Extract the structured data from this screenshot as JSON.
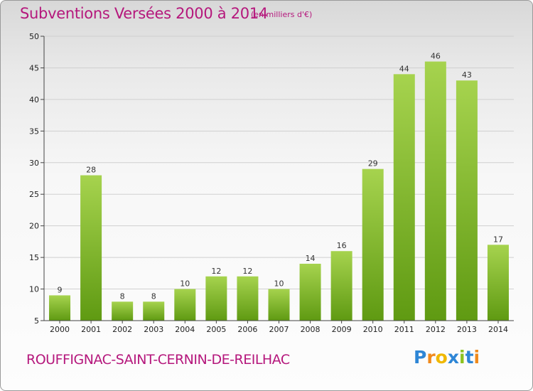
{
  "title": "Subventions Versées 2000 à 2014",
  "unit_note": "(en milliers d'€)",
  "commune": "ROUFFIGNAC-SAINT-CERNIN-DE-REILHAC",
  "logo": {
    "text": "Proxiti",
    "letters": [
      {
        "ch": "P",
        "color": "#2e86d6"
      },
      {
        "ch": "r",
        "color": "#f08a1c"
      },
      {
        "ch": "o",
        "color": "#f0b800"
      },
      {
        "ch": "x",
        "color": "#2e86d6"
      },
      {
        "ch": "i",
        "color": "#8cc21f"
      },
      {
        "ch": "t",
        "color": "#2e86d6"
      },
      {
        "ch": "i",
        "color": "#f08a1c"
      }
    ]
  },
  "colors": {
    "title": "#b5177c",
    "bar_light": "#a6d34e",
    "bar_dark": "#5f9a12",
    "axis": "#444444",
    "grid": "#d0d0d0"
  },
  "chart_data": {
    "type": "bar",
    "categories": [
      "2000",
      "2001",
      "2002",
      "2003",
      "2004",
      "2005",
      "2006",
      "2007",
      "2008",
      "2009",
      "2010",
      "2011",
      "2012",
      "2013",
      "2014"
    ],
    "values": [
      9,
      28,
      8,
      8,
      10,
      12,
      12,
      10,
      14,
      16,
      29,
      44,
      46,
      43,
      17
    ],
    "ylim": [
      5,
      50
    ],
    "yticks": [
      5,
      10,
      15,
      20,
      25,
      30,
      35,
      40,
      45,
      50
    ],
    "grid": true,
    "data_labels": true
  }
}
